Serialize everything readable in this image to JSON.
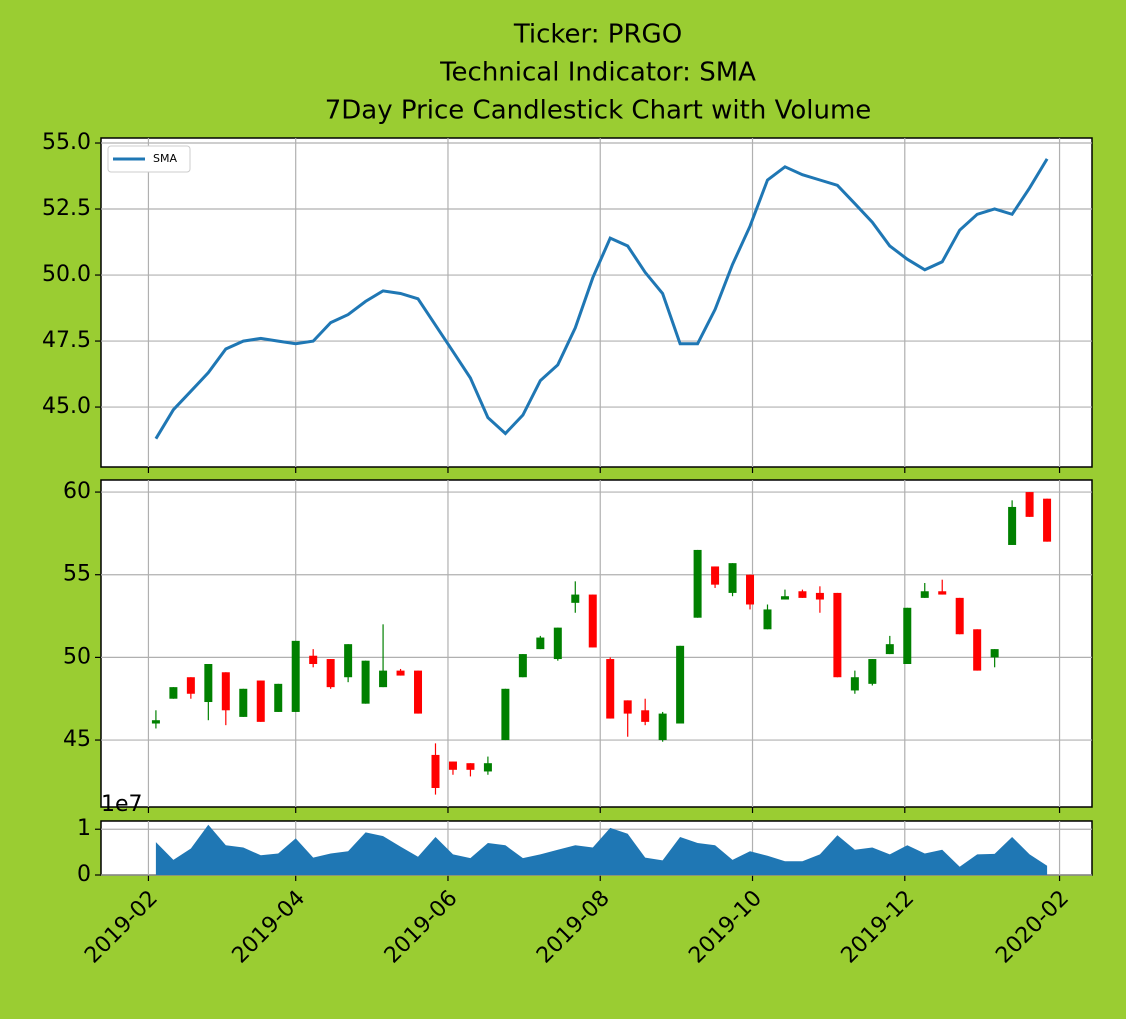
{
  "chart_data": [
    {
      "type": "line",
      "title": [
        "Ticker: PRGO",
        "Technical Indicator: SMA",
        "7Day Price Candlestick Chart with Volume"
      ],
      "legend": "upper left",
      "ylim": [
        42.73,
        55.19
      ],
      "yticks": [
        {
          "value": 45,
          "label": "45.0"
        },
        47.5,
        {
          "value": 50,
          "label": "50.0"
        },
        52.5,
        {
          "value": 55,
          "label": "55.0"
        }
      ],
      "grid": true,
      "x": [
        "2019-02-04",
        "2019-02-11",
        "2019-02-18",
        "2019-02-25",
        "2019-03-04",
        "2019-03-11",
        "2019-03-18",
        "2019-03-25",
        "2019-04-01",
        "2019-04-08",
        "2019-04-15",
        "2019-04-22",
        "2019-04-29",
        "2019-05-06",
        "2019-05-13",
        "2019-05-20",
        "2019-05-27",
        "2019-06-03",
        "2019-06-10",
        "2019-06-17",
        "2019-06-24",
        "2019-07-01",
        "2019-07-08",
        "2019-07-15",
        "2019-07-22",
        "2019-07-29",
        "2019-08-05",
        "2019-08-12",
        "2019-08-19",
        "2019-08-26",
        "2019-09-02",
        "2019-09-09",
        "2019-09-16",
        "2019-09-23",
        "2019-09-30",
        "2019-10-07",
        "2019-10-14",
        "2019-10-21",
        "2019-10-28",
        "2019-11-04",
        "2019-11-11",
        "2019-11-18",
        "2019-11-25",
        "2019-12-02",
        "2019-12-09",
        "2019-12-16",
        "2019-12-23",
        "2019-12-30",
        "2020-01-06",
        "2020-01-13",
        "2020-01-20",
        "2020-01-27"
      ],
      "series": [
        {
          "name": "SMA",
          "color": "#1f77b4",
          "values": [
            43.8,
            44.9,
            45.6,
            46.3,
            47.2,
            47.5,
            47.6,
            47.5,
            47.4,
            47.5,
            48.2,
            48.5,
            49.0,
            49.4,
            49.3,
            49.1,
            48.1,
            47.1,
            46.1,
            44.6,
            44.0,
            44.7,
            46.0,
            46.6,
            48.0,
            49.9,
            51.4,
            51.1,
            50.1,
            49.3,
            47.4,
            47.4,
            48.7,
            50.4,
            51.85,
            53.6,
            54.1,
            53.8,
            53.6,
            53.4,
            52.7,
            52.0,
            51.1,
            50.6,
            50.2,
            50.5,
            51.7,
            52.3,
            52.5,
            52.3,
            53.3,
            54.4
          ]
        }
      ]
    },
    {
      "type": "candlestick",
      "ylim": [
        40.95,
        60.73
      ],
      "yticks": [
        45,
        50,
        55,
        60
      ],
      "grid": true,
      "up_color": "#008000",
      "down_color": "#ff0000",
      "x": [
        "2019-02-04",
        "2019-02-11",
        "2019-02-18",
        "2019-02-25",
        "2019-03-04",
        "2019-03-11",
        "2019-03-18",
        "2019-03-25",
        "2019-04-01",
        "2019-04-08",
        "2019-04-15",
        "2019-04-22",
        "2019-04-29",
        "2019-05-06",
        "2019-05-13",
        "2019-05-20",
        "2019-05-27",
        "2019-06-03",
        "2019-06-10",
        "2019-06-17",
        "2019-06-24",
        "2019-07-01",
        "2019-07-08",
        "2019-07-15",
        "2019-07-22",
        "2019-07-29",
        "2019-08-05",
        "2019-08-12",
        "2019-08-19",
        "2019-08-26",
        "2019-09-02",
        "2019-09-09",
        "2019-09-16",
        "2019-09-23",
        "2019-09-30",
        "2019-10-07",
        "2019-10-14",
        "2019-10-21",
        "2019-10-28",
        "2019-11-04",
        "2019-11-11",
        "2019-11-18",
        "2019-11-25",
        "2019-12-02",
        "2019-12-09",
        "2019-12-16",
        "2019-12-23",
        "2019-12-30",
        "2020-01-06",
        "2020-01-13",
        "2020-01-20",
        "2020-01-27"
      ],
      "open": [
        46.0,
        47.5,
        48.8,
        47.3,
        49.1,
        46.4,
        48.6,
        46.7,
        46.7,
        50.1,
        49.9,
        48.8,
        47.2,
        48.2,
        49.2,
        49.2,
        44.1,
        43.7,
        43.6,
        43.1,
        45.0,
        48.8,
        50.5,
        49.9,
        53.3,
        53.8,
        49.9,
        47.4,
        46.8,
        45.0,
        46.0,
        52.4,
        55.5,
        53.9,
        55.0,
        51.7,
        53.5,
        54.0,
        53.9,
        53.9,
        48.0,
        48.4,
        50.2,
        49.6,
        53.6,
        54.0,
        53.6,
        51.7,
        50.0,
        56.8,
        60.0,
        59.6
      ],
      "high": [
        46.8,
        48.2,
        48.8,
        49.6,
        49.1,
        48.1,
        48.6,
        48.4,
        51.0,
        50.5,
        49.9,
        50.8,
        49.8,
        52.0,
        49.3,
        49.2,
        44.8,
        43.7,
        43.6,
        44.0,
        48.1,
        50.2,
        51.3,
        51.8,
        54.6,
        53.8,
        50.0,
        47.4,
        47.5,
        46.7,
        50.7,
        56.5,
        55.5,
        55.7,
        55.0,
        53.2,
        54.1,
        54.1,
        54.3,
        53.9,
        49.2,
        49.9,
        51.3,
        53.0,
        54.5,
        54.7,
        53.6,
        51.7,
        50.5,
        59.5,
        60.0,
        59.6
      ],
      "low": [
        45.7,
        47.5,
        47.5,
        46.2,
        45.9,
        46.4,
        46.1,
        46.7,
        46.7,
        49.4,
        48.1,
        48.5,
        47.2,
        48.2,
        48.9,
        46.6,
        41.7,
        42.9,
        42.8,
        42.9,
        45.0,
        48.8,
        50.5,
        49.8,
        52.7,
        50.6,
        46.3,
        45.2,
        45.9,
        44.9,
        46.0,
        52.4,
        54.2,
        53.7,
        52.9,
        51.7,
        53.5,
        53.6,
        52.7,
        48.8,
        47.8,
        48.3,
        50.2,
        49.6,
        53.6,
        53.8,
        51.4,
        49.2,
        49.4,
        56.8,
        58.5,
        57.0
      ],
      "close": [
        46.2,
        48.2,
        47.8,
        49.6,
        46.8,
        48.1,
        46.1,
        48.4,
        51.0,
        49.6,
        48.2,
        50.8,
        49.8,
        49.2,
        48.9,
        46.6,
        42.1,
        43.2,
        43.2,
        43.6,
        48.1,
        50.2,
        51.2,
        51.8,
        53.8,
        50.6,
        46.3,
        46.6,
        46.1,
        46.6,
        50.7,
        56.5,
        54.4,
        55.7,
        53.2,
        52.9,
        53.7,
        53.6,
        53.5,
        48.8,
        48.8,
        49.9,
        50.8,
        53.0,
        54.0,
        53.8,
        51.4,
        49.2,
        50.5,
        59.1,
        58.5,
        57.0
      ]
    },
    {
      "type": "area",
      "color": "#1f77b4",
      "y_offset_label": "1e7",
      "ylim": [
        0,
        11800000
      ],
      "yticks": [
        0,
        {
          "value": 10000000,
          "label": "1"
        }
      ],
      "grid": true,
      "xlim": [
        "2019-01-13",
        "2020-02-14"
      ],
      "xticks": [
        {
          "value": "2019-02-01",
          "label": "2019-02"
        },
        {
          "value": "2019-04-01",
          "label": "2019-04"
        },
        {
          "value": "2019-06-01",
          "label": "2019-06"
        },
        {
          "value": "2019-08-01",
          "label": "2019-08"
        },
        {
          "value": "2019-10-01",
          "label": "2019-10"
        },
        {
          "value": "2019-12-01",
          "label": "2019-12"
        },
        {
          "value": "2020-02-01",
          "label": "2020-02"
        }
      ],
      "x": [
        "2019-02-04",
        "2019-02-11",
        "2019-02-18",
        "2019-02-25",
        "2019-03-04",
        "2019-03-11",
        "2019-03-18",
        "2019-03-25",
        "2019-04-01",
        "2019-04-08",
        "2019-04-15",
        "2019-04-22",
        "2019-04-29",
        "2019-05-06",
        "2019-05-13",
        "2019-05-20",
        "2019-05-27",
        "2019-06-03",
        "2019-06-10",
        "2019-06-17",
        "2019-06-24",
        "2019-07-01",
        "2019-07-08",
        "2019-07-15",
        "2019-07-22",
        "2019-07-29",
        "2019-08-05",
        "2019-08-12",
        "2019-08-19",
        "2019-08-26",
        "2019-09-02",
        "2019-09-09",
        "2019-09-16",
        "2019-09-23",
        "2019-09-30",
        "2019-10-07",
        "2019-10-14",
        "2019-10-21",
        "2019-10-28",
        "2019-11-04",
        "2019-11-11",
        "2019-11-18",
        "2019-11-25",
        "2019-12-02",
        "2019-12-09",
        "2019-12-16",
        "2019-12-23",
        "2019-12-30",
        "2020-01-06",
        "2020-01-13",
        "2020-01-20",
        "2020-01-27"
      ],
      "values": [
        7200000,
        3300000,
        5800000,
        11000000,
        6500000,
        6000000,
        4300000,
        4700000,
        8000000,
        3800000,
        4700000,
        5200000,
        9300000,
        8500000,
        6200000,
        4000000,
        8300000,
        4500000,
        3700000,
        7000000,
        6500000,
        3700000,
        4500000,
        5500000,
        6500000,
        6000000,
        10300000,
        9000000,
        3800000,
        3200000,
        8300000,
        7000000,
        6500000,
        3300000,
        5200000,
        4200000,
        3000000,
        3000000,
        4500000,
        8700000,
        5500000,
        6000000,
        4500000,
        6500000,
        4700000,
        5500000,
        1800000,
        4500000,
        4600000,
        8300000,
        4500000,
        2000000
      ]
    }
  ]
}
